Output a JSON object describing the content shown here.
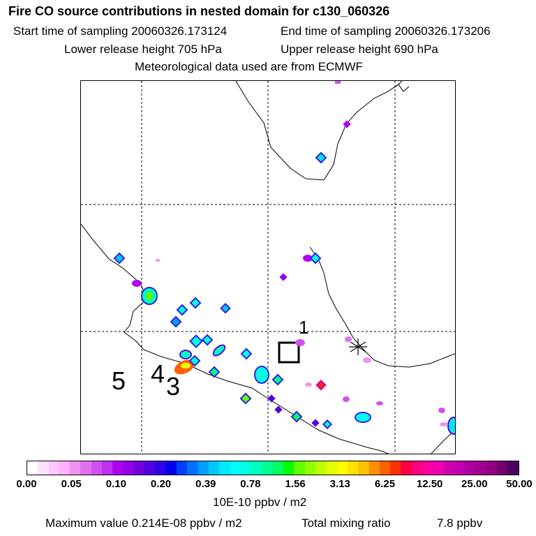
{
  "header": {
    "title": "Fire CO source contributions in nested domain for c130_060326",
    "start_sampling": "Start time of sampling 20060326.173124",
    "end_sampling": "End time of sampling 20060326.173206",
    "lower_release": "Lower release height  705 hPa",
    "upper_release": "Upper release height  690 hPa",
    "met_data": "Meteorological data used are from ECMWF"
  },
  "map": {
    "labels": {
      "l1": "1",
      "l3": "3",
      "l4": "4",
      "l5": "5"
    }
  },
  "legend": {
    "ticks": [
      "0.00",
      "0.05",
      "0.10",
      "0.20",
      "0.39",
      "0.78",
      "1.56",
      "3.13",
      "6.25",
      "12.50",
      "25.00",
      "50.00"
    ],
    "units": "10E-10 ppbv / m2",
    "colors": [
      "#ffffff",
      "#ffe0ff",
      "#ffc8ff",
      "#ffb0ff",
      "#f090f0",
      "#e070f0",
      "#d050f0",
      "#c030f0",
      "#b000f0",
      "#9000e8",
      "#7000e0",
      "#5000e0",
      "#3000e8",
      "#0000f0",
      "#0040ff",
      "#0070ff",
      "#00a0ff",
      "#00c8ff",
      "#00e8ff",
      "#00ffff",
      "#00ffe0",
      "#00ffc0",
      "#00ff90",
      "#00ff60",
      "#00ff00",
      "#60ff00",
      "#90ff00",
      "#c0ff00",
      "#e0ff00",
      "#ffff00",
      "#ffe000",
      "#ffc000",
      "#ff9000",
      "#ff6000",
      "#ff3000",
      "#ff0040",
      "#ff0080",
      "#ff00a0",
      "#f000b0",
      "#d000b0",
      "#c000b0",
      "#b000a0",
      "#a00090",
      "#900080",
      "#700070",
      "#500060"
    ]
  },
  "footer": {
    "max_value": "Maximum value  0.214E-08 ppbv / m2",
    "total_label": "Total mixing ratio",
    "total_value": "7.8 ppbv"
  }
}
